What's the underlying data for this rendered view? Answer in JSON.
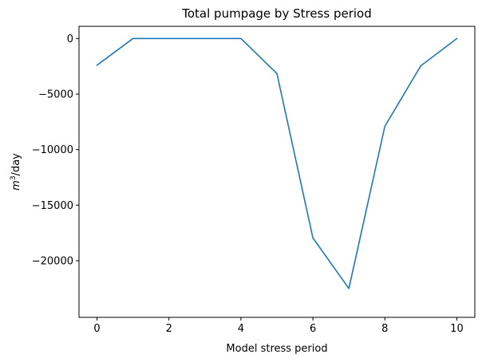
{
  "chart_data": {
    "type": "line",
    "title": "Total pumpage by Stress period",
    "xlabel": "Model stress period",
    "ylabel_math": "m",
    "ylabel_super": "3",
    "ylabel_rest": "/day",
    "xlim": [
      -0.5,
      10.5
    ],
    "ylim": [
      -25100,
      1100
    ],
    "xticks": [
      0,
      2,
      4,
      6,
      8,
      10
    ],
    "xtick_labels": [
      "0",
      "2",
      "4",
      "6",
      "8",
      "10"
    ],
    "yticks": [
      0,
      -5000,
      -10000,
      -15000,
      -20000
    ],
    "ytick_labels": [
      "0",
      "−5000",
      "−10000",
      "−15000",
      "−20000"
    ],
    "grid": false,
    "series": [
      {
        "color": "#1f77b4",
        "x": [
          0,
          1,
          2,
          3,
          4,
          5,
          6,
          7,
          8,
          9,
          10
        ],
        "y": [
          -2400,
          0,
          0,
          0,
          0,
          -3150,
          -17950,
          -22500,
          -7900,
          -2450,
          0
        ]
      }
    ]
  }
}
